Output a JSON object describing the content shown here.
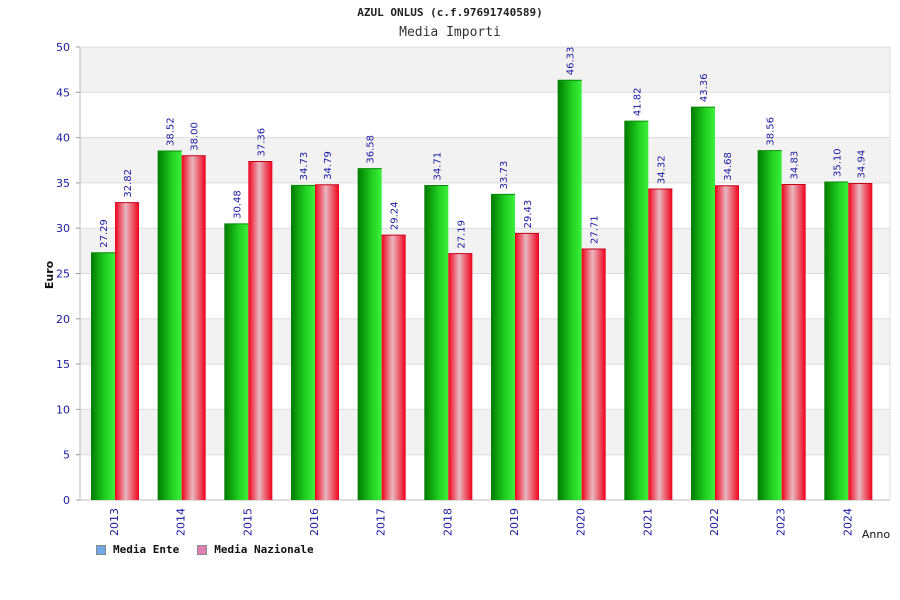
{
  "title": "AZUL ONLUS (c.f.97691740589)",
  "subtitle": "Media Importi",
  "legend": [
    {
      "label": "Media Ente",
      "color": "#6fa8e6"
    },
    {
      "label": "Media Nazionale",
      "color": "#e07fb0"
    }
  ],
  "colors": {
    "ente_dark": "#007a00",
    "ente_light": "#3cf03c",
    "naz_dark": "#f0001a",
    "naz_light": "#e8b8c0",
    "axis_text": "#1a1aa0",
    "band": "#f2f2f2",
    "grid": "#dddddd"
  },
  "chart_data": {
    "type": "bar",
    "xlabel": "Anno",
    "ylabel": "Euro",
    "ylim": [
      0,
      50
    ],
    "yticks": [
      0,
      5,
      10,
      15,
      20,
      25,
      30,
      35,
      40,
      45,
      50
    ],
    "categories": [
      "2013",
      "2014",
      "2015",
      "2016",
      "2017",
      "2018",
      "2019",
      "2020",
      "2021",
      "2022",
      "2023",
      "2024"
    ],
    "series": [
      {
        "name": "Media Ente",
        "values": [
          27.29,
          38.52,
          30.48,
          34.73,
          36.58,
          34.71,
          33.73,
          46.33,
          41.82,
          43.36,
          38.56,
          35.1
        ],
        "labels": [
          "27.29",
          "38.52",
          "30.48",
          "34.73",
          "36.58",
          "34.71",
          "33.73",
          "46.33",
          "41.82",
          "43.36",
          "38.56",
          "35.10"
        ]
      },
      {
        "name": "Media Nazionale",
        "values": [
          32.82,
          38.0,
          37.36,
          34.79,
          29.24,
          27.19,
          29.43,
          27.71,
          34.32,
          34.68,
          34.83,
          34.94
        ],
        "labels": [
          "32.82",
          "38.00",
          "37.36",
          "34.79",
          "29.24",
          "27.19",
          "29.43",
          "27.71",
          "34.32",
          "34.68",
          "34.83",
          "34.94"
        ]
      }
    ],
    "grid": true,
    "legend_position": "bottom-left"
  }
}
